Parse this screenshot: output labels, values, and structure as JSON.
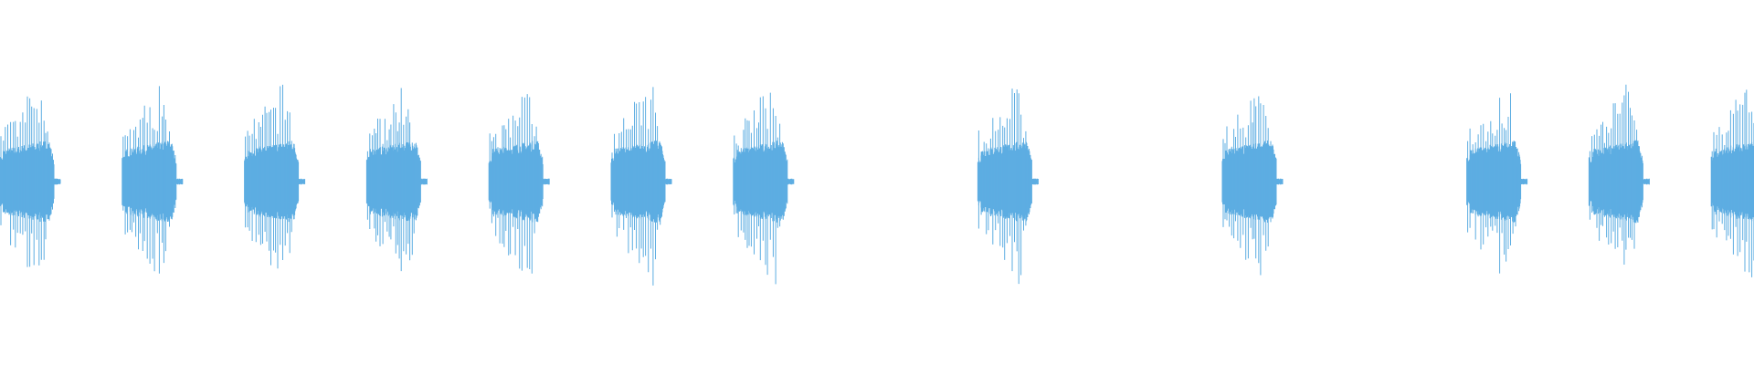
{
  "waveform": {
    "color": "#5dade2",
    "background": "#ffffff",
    "burst_slots": [
      1,
      1,
      1,
      1,
      1,
      1,
      1,
      0,
      1,
      0,
      1,
      0,
      1,
      1,
      1
    ]
  }
}
